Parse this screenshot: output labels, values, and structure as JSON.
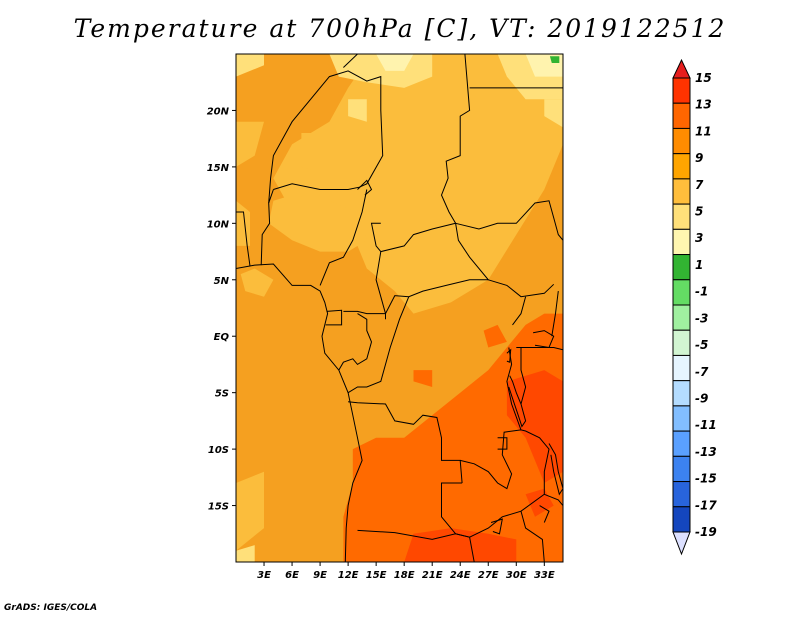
{
  "title": "Temperature at 700hPa [C], VT: 2019122512",
  "credit": "GrADS: IGES/COLA",
  "map": {
    "lon_range": [
      0,
      35
    ],
    "lat_range": [
      -20,
      25
    ],
    "lat_ticks": [
      {
        "value": 20,
        "label": "20N"
      },
      {
        "value": 15,
        "label": "15N"
      },
      {
        "value": 10,
        "label": "10N"
      },
      {
        "value": 5,
        "label": "5N"
      },
      {
        "value": 0,
        "label": "EQ"
      },
      {
        "value": -5,
        "label": "5S"
      },
      {
        "value": -10,
        "label": "10S"
      },
      {
        "value": -15,
        "label": "15S"
      }
    ],
    "lon_ticks": [
      {
        "value": 3,
        "label": "3E"
      },
      {
        "value": 6,
        "label": "6E"
      },
      {
        "value": 9,
        "label": "9E"
      },
      {
        "value": 12,
        "label": "12E"
      },
      {
        "value": 15,
        "label": "15E"
      },
      {
        "value": 18,
        "label": "18E"
      },
      {
        "value": 21,
        "label": "21E"
      },
      {
        "value": 24,
        "label": "24E"
      },
      {
        "value": 27,
        "label": "27E"
      },
      {
        "value": 30,
        "label": "30E"
      },
      {
        "value": 33,
        "label": "33E"
      }
    ]
  },
  "colorbar": {
    "levels": [
      "15",
      "13",
      "11",
      "9",
      "7",
      "5",
      "3",
      "1",
      "-1",
      "-3",
      "-5",
      "-7",
      "-9",
      "-11",
      "-13",
      "-15",
      "-17",
      "-19"
    ],
    "colors": [
      "#ff3300",
      "#ff6600",
      "#ff8c00",
      "#ffa500",
      "#ffbe3c",
      "#ffe07a",
      "#fff6b0",
      "#32b432",
      "#64dc64",
      "#a0f0a0",
      "#d2f5d2",
      "#e6f5ff",
      "#b4dcff",
      "#82beff",
      "#5aa0ff",
      "#3c82f0",
      "#2864dc",
      "#1446be",
      "#0a2896",
      "#08085a"
    ],
    "top_color": "#e61e1e",
    "bottom_color": "#dce0ff"
  },
  "fields": {
    "base_color": "#f5a020",
    "warm_color": "#ff6a00",
    "hot_color": "#ff4800",
    "mild_color": "#fbbd3c",
    "cool_color": "#ffe07a",
    "coolest_color": "#fff3ae",
    "green_color": "#32b432"
  }
}
